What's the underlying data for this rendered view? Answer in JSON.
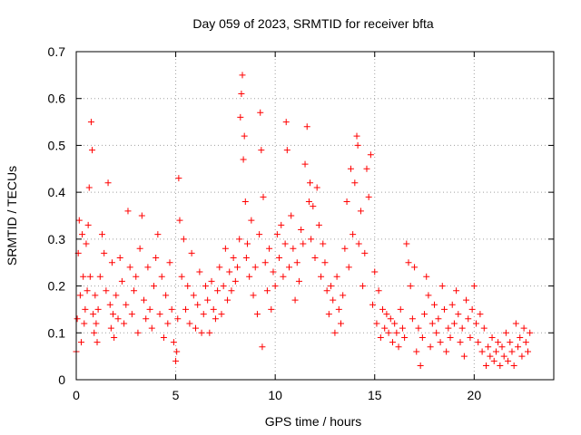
{
  "colors": {
    "series": "#ff0000",
    "axis": "#000000",
    "grid": "#a0a0a0",
    "background": "#ffffff"
  },
  "chart_data": {
    "type": "scatter",
    "title": "Day 059 of 2023, SRMTID for receiver bfta",
    "xlabel": "GPS time / hours",
    "ylabel": "SRMTID / TECUs",
    "xlim": [
      0,
      24
    ],
    "ylim": [
      0,
      0.7
    ],
    "grid": true,
    "marker": "+",
    "xticks": [
      {
        "value": 0,
        "label": "0"
      },
      {
        "value": 5,
        "label": "5"
      },
      {
        "value": 10,
        "label": "10"
      },
      {
        "value": 15,
        "label": "15"
      },
      {
        "value": 20,
        "label": "20"
      }
    ],
    "yticks": [
      {
        "value": 0,
        "label": "0"
      },
      {
        "value": 0.1,
        "label": "0.1"
      },
      {
        "value": 0.2,
        "label": "0.2"
      },
      {
        "value": 0.3,
        "label": "0.3"
      },
      {
        "value": 0.4,
        "label": "0.4"
      },
      {
        "value": 0.5,
        "label": "0.5"
      },
      {
        "value": 0.6,
        "label": "0.6"
      },
      {
        "value": 0.7,
        "label": "0.7"
      }
    ],
    "series": [
      {
        "name": "bfta",
        "x": [
          0.0,
          0.05,
          0.1,
          0.15,
          0.2,
          0.25,
          0.3,
          0.35,
          0.4,
          0.45,
          0.5,
          0.55,
          0.6,
          0.65,
          0.7,
          0.75,
          0.8,
          0.85,
          0.9,
          0.95,
          1.0,
          1.05,
          1.1,
          1.2,
          1.3,
          1.4,
          1.5,
          1.6,
          1.7,
          1.75,
          1.8,
          1.85,
          1.9,
          2.0,
          2.1,
          2.2,
          2.3,
          2.4,
          2.5,
          2.6,
          2.7,
          2.8,
          2.9,
          3.0,
          3.1,
          3.2,
          3.3,
          3.4,
          3.5,
          3.6,
          3.7,
          3.8,
          3.9,
          4.0,
          4.1,
          4.2,
          4.3,
          4.4,
          4.5,
          4.6,
          4.7,
          4.8,
          4.9,
          5.0,
          5.05,
          5.1,
          5.15,
          5.2,
          5.3,
          5.4,
          5.5,
          5.6,
          5.7,
          5.8,
          5.9,
          6.0,
          6.1,
          6.2,
          6.3,
          6.4,
          6.5,
          6.6,
          6.7,
          6.8,
          6.9,
          7.0,
          7.1,
          7.2,
          7.3,
          7.4,
          7.5,
          7.6,
          7.7,
          7.8,
          7.9,
          8.0,
          8.1,
          8.2,
          8.25,
          8.3,
          8.35,
          8.4,
          8.45,
          8.5,
          8.55,
          8.6,
          8.7,
          8.8,
          8.9,
          9.0,
          9.1,
          9.2,
          9.25,
          9.3,
          9.35,
          9.4,
          9.5,
          9.6,
          9.7,
          9.8,
          9.9,
          10.0,
          10.1,
          10.2,
          10.3,
          10.4,
          10.5,
          10.55,
          10.6,
          10.7,
          10.8,
          10.9,
          11.0,
          11.1,
          11.2,
          11.3,
          11.4,
          11.5,
          11.6,
          11.7,
          11.75,
          11.8,
          11.9,
          12.0,
          12.1,
          12.2,
          12.3,
          12.4,
          12.5,
          12.6,
          12.7,
          12.8,
          12.9,
          13.0,
          13.1,
          13.2,
          13.3,
          13.4,
          13.5,
          13.6,
          13.7,
          13.8,
          13.9,
          14.0,
          14.1,
          14.15,
          14.2,
          14.3,
          14.4,
          14.5,
          14.6,
          14.7,
          14.8,
          14.9,
          15.0,
          15.1,
          15.2,
          15.3,
          15.4,
          15.5,
          15.6,
          15.7,
          15.8,
          15.9,
          16.0,
          16.1,
          16.2,
          16.3,
          16.4,
          16.5,
          16.6,
          16.7,
          16.8,
          16.9,
          17.0,
          17.1,
          17.2,
          17.3,
          17.4,
          17.5,
          17.6,
          17.7,
          17.8,
          17.9,
          18.0,
          18.1,
          18.2,
          18.3,
          18.4,
          18.5,
          18.6,
          18.7,
          18.8,
          18.9,
          19.0,
          19.1,
          19.2,
          19.3,
          19.4,
          19.5,
          19.6,
          19.7,
          19.8,
          19.9,
          20.0,
          20.1,
          20.2,
          20.3,
          20.4,
          20.5,
          20.6,
          20.7,
          20.8,
          20.9,
          21.0,
          21.1,
          21.2,
          21.3,
          21.4,
          21.5,
          21.6,
          21.7,
          21.8,
          21.9,
          22.0,
          22.1,
          22.2,
          22.3,
          22.4,
          22.5,
          22.6,
          22.7,
          22.8
        ],
        "y": [
          0.06,
          0.13,
          0.27,
          0.34,
          0.18,
          0.08,
          0.31,
          0.22,
          0.12,
          0.15,
          0.29,
          0.19,
          0.33,
          0.41,
          0.22,
          0.55,
          0.49,
          0.14,
          0.1,
          0.18,
          0.12,
          0.08,
          0.15,
          0.22,
          0.31,
          0.27,
          0.19,
          0.42,
          0.16,
          0.11,
          0.25,
          0.14,
          0.09,
          0.18,
          0.13,
          0.26,
          0.21,
          0.12,
          0.16,
          0.36,
          0.24,
          0.14,
          0.19,
          0.22,
          0.1,
          0.28,
          0.35,
          0.17,
          0.13,
          0.24,
          0.15,
          0.11,
          0.2,
          0.26,
          0.31,
          0.14,
          0.22,
          0.09,
          0.18,
          0.12,
          0.25,
          0.15,
          0.08,
          0.04,
          0.06,
          0.13,
          0.43,
          0.34,
          0.22,
          0.3,
          0.15,
          0.2,
          0.12,
          0.27,
          0.18,
          0.11,
          0.16,
          0.23,
          0.1,
          0.14,
          0.2,
          0.17,
          0.1,
          0.21,
          0.15,
          0.13,
          0.19,
          0.24,
          0.14,
          0.2,
          0.28,
          0.17,
          0.23,
          0.19,
          0.26,
          0.21,
          0.24,
          0.3,
          0.56,
          0.61,
          0.65,
          0.47,
          0.52,
          0.38,
          0.26,
          0.29,
          0.22,
          0.34,
          0.18,
          0.24,
          0.14,
          0.31,
          0.57,
          0.49,
          0.07,
          0.39,
          0.25,
          0.19,
          0.28,
          0.15,
          0.23,
          0.2,
          0.31,
          0.26,
          0.33,
          0.22,
          0.29,
          0.55,
          0.49,
          0.24,
          0.35,
          0.28,
          0.17,
          0.25,
          0.21,
          0.32,
          0.29,
          0.46,
          0.54,
          0.38,
          0.42,
          0.3,
          0.37,
          0.26,
          0.41,
          0.33,
          0.22,
          0.29,
          0.25,
          0.19,
          0.14,
          0.2,
          0.17,
          0.1,
          0.22,
          0.15,
          0.12,
          0.18,
          0.28,
          0.38,
          0.24,
          0.45,
          0.31,
          0.42,
          0.52,
          0.5,
          0.29,
          0.36,
          0.2,
          0.27,
          0.45,
          0.39,
          0.48,
          0.16,
          0.23,
          0.12,
          0.19,
          0.09,
          0.15,
          0.11,
          0.14,
          0.1,
          0.13,
          0.08,
          0.12,
          0.1,
          0.07,
          0.15,
          0.11,
          0.09,
          0.29,
          0.25,
          0.2,
          0.13,
          0.24,
          0.06,
          0.11,
          0.03,
          0.09,
          0.14,
          0.22,
          0.18,
          0.07,
          0.12,
          0.16,
          0.1,
          0.13,
          0.08,
          0.2,
          0.15,
          0.06,
          0.11,
          0.09,
          0.16,
          0.12,
          0.19,
          0.14,
          0.08,
          0.11,
          0.05,
          0.17,
          0.13,
          0.09,
          0.15,
          0.2,
          0.12,
          0.08,
          0.14,
          0.06,
          0.11,
          0.03,
          0.07,
          0.05,
          0.09,
          0.04,
          0.06,
          0.08,
          0.03,
          0.07,
          0.05,
          0.1,
          0.04,
          0.08,
          0.06,
          0.03,
          0.12,
          0.07,
          0.09,
          0.05,
          0.11,
          0.08,
          0.06,
          0.1
        ]
      }
    ]
  }
}
